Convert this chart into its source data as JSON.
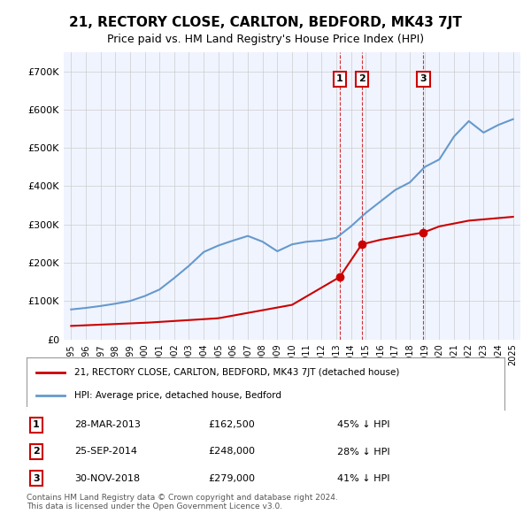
{
  "title": "21, RECTORY CLOSE, CARLTON, BEDFORD, MK43 7JT",
  "subtitle": "Price paid vs. HM Land Registry's House Price Index (HPI)",
  "legend_label_red": "21, RECTORY CLOSE, CARLTON, BEDFORD, MK43 7JT (detached house)",
  "legend_label_blue": "HPI: Average price, detached house, Bedford",
  "footer": "Contains HM Land Registry data © Crown copyright and database right 2024.\nThis data is licensed under the Open Government Licence v3.0.",
  "transactions": [
    {
      "id": 1,
      "date": "28-MAR-2013",
      "price": 162500,
      "pct": "45%",
      "dir": "↓",
      "year_x": 2013.23
    },
    {
      "id": 2,
      "date": "25-SEP-2014",
      "price": 248000,
      "pct": "28%",
      "dir": "↓",
      "year_x": 2014.73
    },
    {
      "id": 3,
      "date": "30-NOV-2018",
      "price": 279000,
      "pct": "41%",
      "dir": "↓",
      "year_x": 2018.92
    }
  ],
  "hpi_years": [
    1995,
    1996,
    1997,
    1998,
    1999,
    2000,
    2001,
    2002,
    2003,
    2004,
    2005,
    2006,
    2007,
    2008,
    2009,
    2010,
    2011,
    2012,
    2013,
    2014,
    2015,
    2016,
    2017,
    2018,
    2019,
    2020,
    2021,
    2022,
    2023,
    2024,
    2025
  ],
  "hpi_values": [
    78000,
    82000,
    87000,
    93000,
    100000,
    113000,
    130000,
    160000,
    192000,
    228000,
    245000,
    258000,
    270000,
    255000,
    230000,
    248000,
    255000,
    258000,
    265000,
    295000,
    330000,
    360000,
    390000,
    410000,
    450000,
    470000,
    530000,
    570000,
    540000,
    560000,
    575000
  ],
  "price_paid_years": [
    1995,
    2013.23,
    2014.73,
    2018.92,
    2025
  ],
  "price_paid_values": [
    35000,
    162500,
    248000,
    279000,
    320000
  ],
  "xlim": [
    1994.5,
    2025.5
  ],
  "ylim": [
    0,
    750000
  ],
  "yticks": [
    0,
    100000,
    200000,
    300000,
    400000,
    500000,
    600000,
    700000
  ],
  "ytick_labels": [
    "£0",
    "£100K",
    "£200K",
    "£300K",
    "£400K",
    "£500K",
    "£600K",
    "£700K"
  ],
  "xticks": [
    1995,
    1996,
    1997,
    1998,
    1999,
    2000,
    2001,
    2002,
    2003,
    2004,
    2005,
    2006,
    2007,
    2008,
    2009,
    2010,
    2011,
    2012,
    2013,
    2014,
    2015,
    2016,
    2017,
    2018,
    2019,
    2020,
    2021,
    2022,
    2023,
    2024,
    2025
  ],
  "red_color": "#cc0000",
  "blue_color": "#6699cc",
  "dashed_color": "#cc0000",
  "label_box_color": "#cc0000",
  "grid_color": "#cccccc",
  "bg_color": "#ffffff",
  "plot_bg_color": "#f0f4ff"
}
